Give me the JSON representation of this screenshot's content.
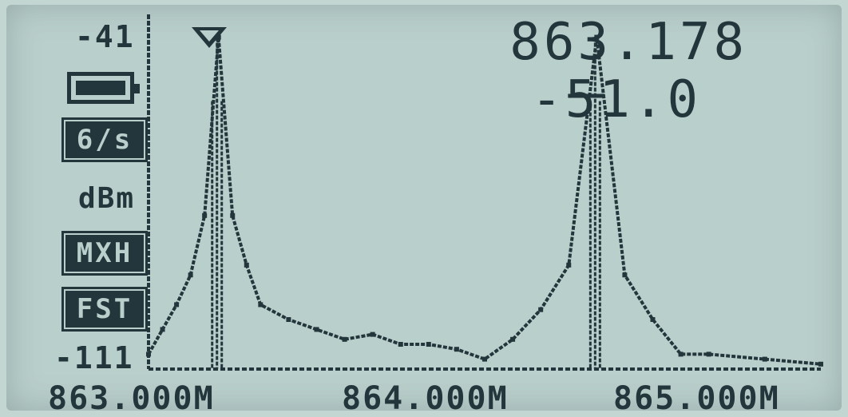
{
  "display": {
    "ref_level": "-41",
    "bottom_level": "-111",
    "marker_freq": "863.178",
    "marker_level": "-51.0",
    "unit": "dBm",
    "span_badge": "6/s",
    "mode_badge": "MXH",
    "speed_badge": "FST",
    "icons": [
      "battery-full-icon",
      "marker-triangle-icon"
    ]
  },
  "chart_data": {
    "type": "line",
    "x": [
      863.0,
      863.05,
      863.1,
      863.15,
      863.2,
      863.25,
      863.3,
      863.35,
      863.4,
      863.5,
      863.6,
      863.7,
      863.8,
      863.9,
      864.0,
      864.1,
      864.2,
      864.3,
      864.4,
      864.5,
      864.6,
      864.7,
      864.8,
      864.9,
      865.0,
      865.2,
      865.4
    ],
    "series": [
      {
        "values": [
          -108,
          -103,
          -98,
          -92,
          -80,
          -44,
          -80,
          -90,
          -98,
          -101,
          -103,
          -105,
          -104,
          -106,
          -106,
          -107,
          -109,
          -105,
          -99,
          -90,
          -44,
          -92,
          -101,
          -108,
          -108,
          -109,
          -110
        ]
      }
    ],
    "tick_labels": [
      "863.000M",
      "864.000M",
      "865.000M"
    ],
    "ylim": [
      -111,
      -41
    ],
    "xlim": [
      863.0,
      865.4
    ]
  }
}
